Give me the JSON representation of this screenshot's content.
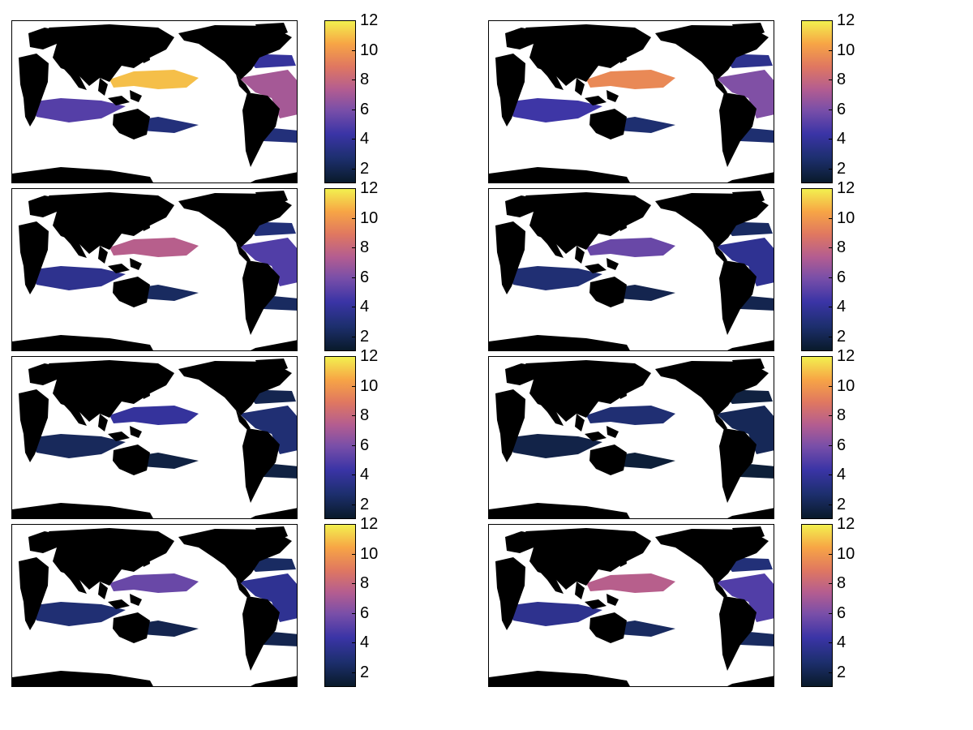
{
  "figure": {
    "panel_count": 8,
    "layout": "4 rows x 2 columns of world maps, each with its own vertical colorbar",
    "projection": "Pacific-centered world map, land shown in black, ocean white, values shaded on ocean"
  },
  "colorbar": {
    "colormap": "dark navy -> indigo -> purple -> magenta -> orange -> yellow",
    "range": [
      1,
      12
    ],
    "tick_labels": [
      "12",
      "10",
      "8",
      "6",
      "4",
      "2"
    ],
    "colors": {
      "low": "#091a2a",
      "mid": "#7a4fa8",
      "high": "#f2f04f",
      "land": "#000000"
    }
  },
  "panels": [
    {
      "id": "r1c1",
      "intensity": "high"
    },
    {
      "id": "r1c2",
      "intensity": "medium-high"
    },
    {
      "id": "r2c1",
      "intensity": "medium"
    },
    {
      "id": "r2c2",
      "intensity": "medium-low"
    },
    {
      "id": "r3c1",
      "intensity": "low"
    },
    {
      "id": "r3c2",
      "intensity": "very-low"
    },
    {
      "id": "r4c1",
      "intensity": "medium-low"
    },
    {
      "id": "r4c2",
      "intensity": "medium"
    }
  ]
}
